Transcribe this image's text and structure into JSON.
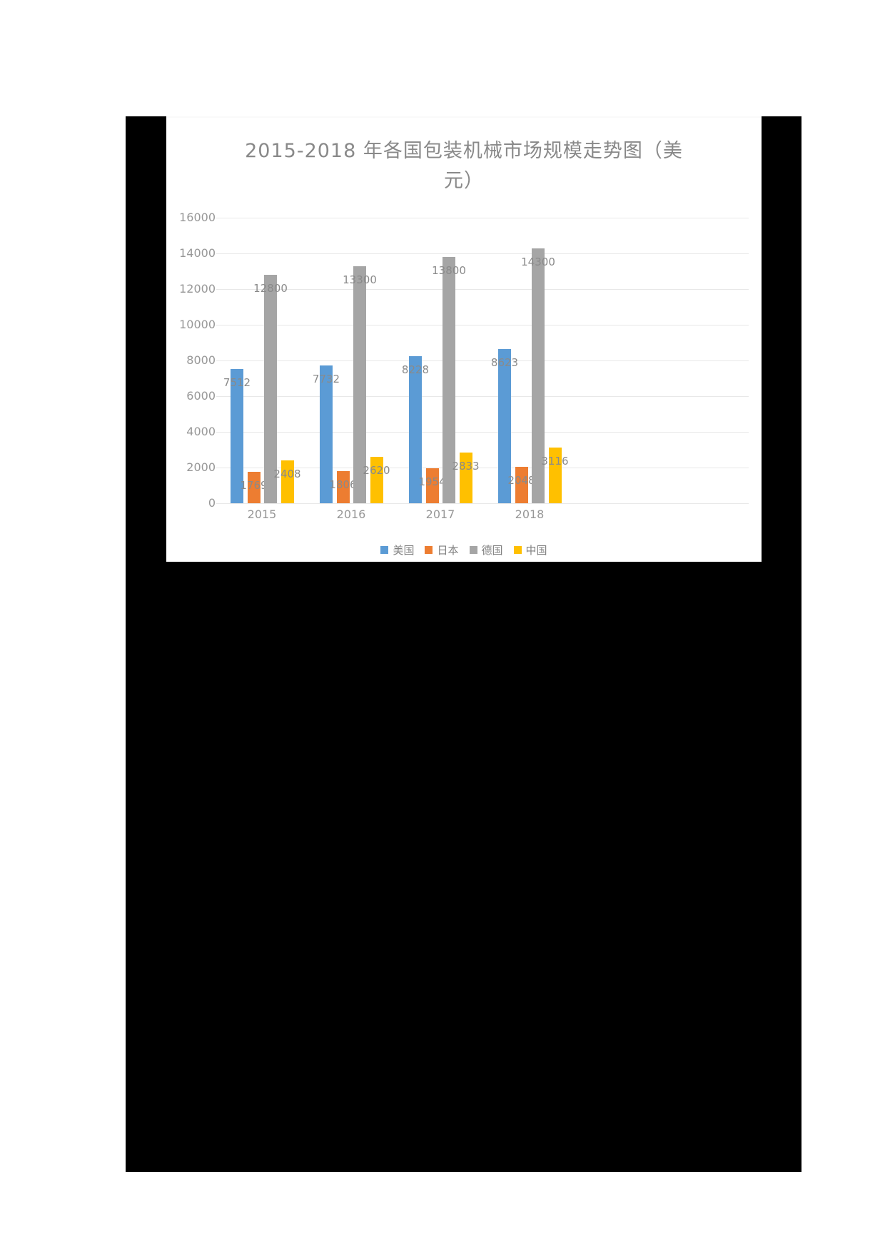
{
  "page": {
    "background_color": "#ffffff",
    "dark_region_color": "#000000"
  },
  "chart": {
    "title_line1": "2015-2018 年各国包装机械市场规模走势图（美",
    "title_line2": "元）",
    "title_color": "#898989",
    "tick_color": "#979797",
    "data_label_color": "#8a8a8a",
    "grid_color": "#e8e8e8"
  },
  "chart_data": {
    "type": "bar",
    "title": "2015-2018年各国包装机械市场规模走势图（美元）",
    "categories": [
      "2015",
      "2016",
      "2017",
      "2018"
    ],
    "series": [
      {
        "name": "美国",
        "color": "#5B9BD5",
        "values": [
          7512,
          7732,
          8228,
          8623
        ]
      },
      {
        "name": "日本",
        "color": "#ED7D31",
        "values": [
          1769,
          1806,
          1954,
          2048
        ]
      },
      {
        "name": "德国",
        "color": "#A5A5A5",
        "values": [
          12800,
          13300,
          13800,
          14300
        ]
      },
      {
        "name": "中国",
        "color": "#FFC000",
        "values": [
          2408,
          2620,
          2833,
          3116
        ]
      }
    ],
    "yticks": [
      0,
      2000,
      4000,
      6000,
      8000,
      10000,
      12000,
      14000,
      16000
    ],
    "ylim": [
      0,
      16000
    ],
    "ytick_step": 2000,
    "xlabel": "",
    "ylabel": "",
    "grid": true,
    "data_labels": true,
    "legend_position": "bottom",
    "legend_labels": [
      "美国",
      "日本",
      "德国",
      "中国"
    ]
  }
}
